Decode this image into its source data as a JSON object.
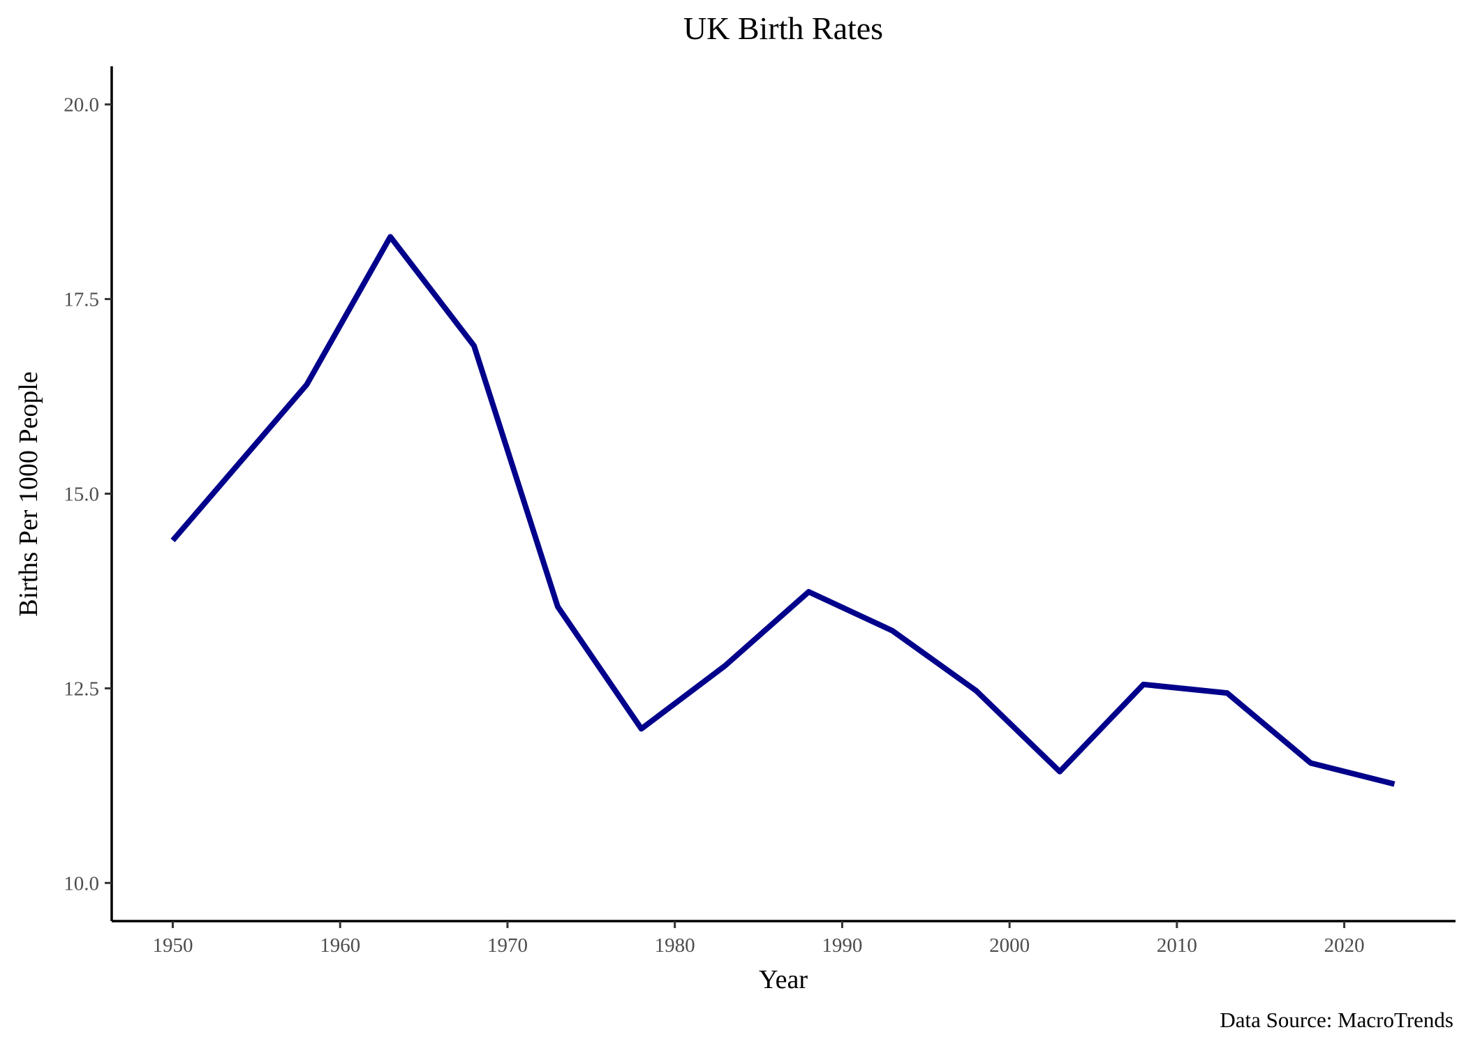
{
  "chart_data": {
    "type": "line",
    "title": "UK Birth Rates",
    "xlabel": "Year",
    "ylabel": "Births Per 1000 People",
    "caption": "Data Source: MacroTrends",
    "xlim": [
      1946.35,
      2026.65
    ],
    "ylim": [
      9.51,
      20.49
    ],
    "x_ticks": [
      1950,
      1960,
      1970,
      1980,
      1990,
      2000,
      2010,
      2020
    ],
    "y_ticks": [
      10.0,
      12.5,
      15.0,
      17.5,
      20.0
    ],
    "grid": false,
    "legend": "none",
    "series": [
      {
        "color": "#00008b",
        "x": [
          1950,
          1958,
          1963,
          1968,
          1973,
          1978,
          1983,
          1988,
          1993,
          1998,
          2003,
          2008,
          2013,
          2018,
          2023
        ],
        "y": [
          14.4,
          16.4,
          18.3,
          16.9,
          13.55,
          11.98,
          12.79,
          13.74,
          13.24,
          12.47,
          11.43,
          12.55,
          12.44,
          11.54,
          11.27
        ]
      }
    ]
  }
}
